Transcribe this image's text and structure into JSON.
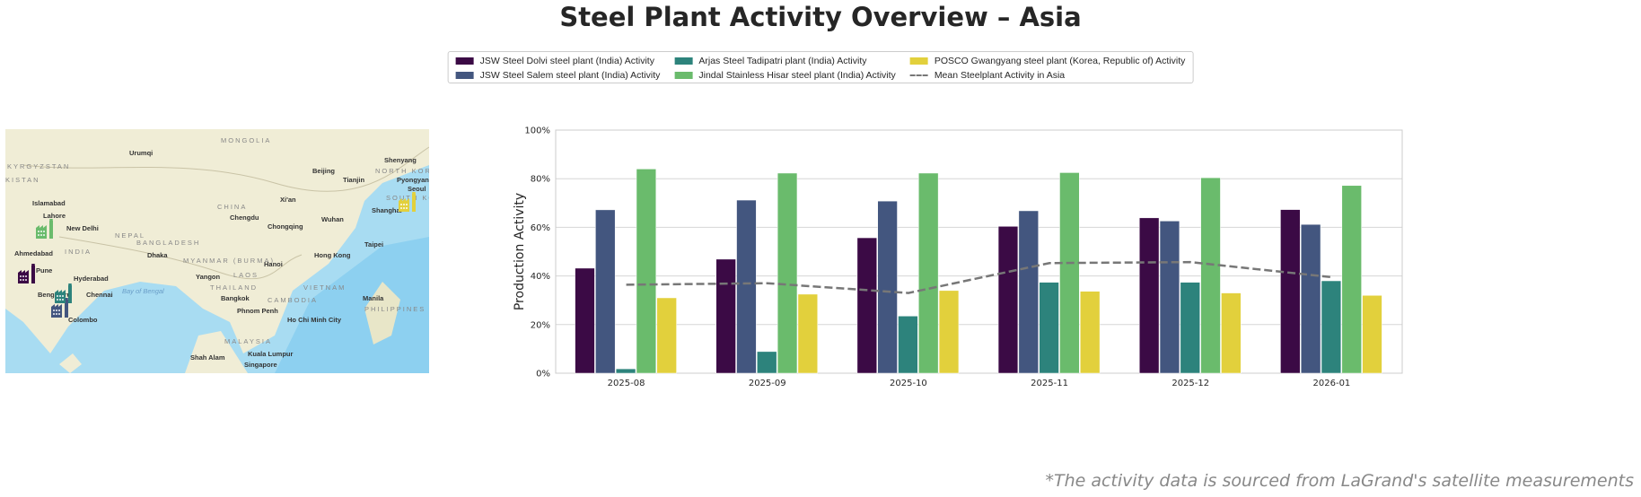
{
  "title": "Steel Plant Activity Overview – Asia",
  "footnote": "*The activity data is sourced from LaGrand's satellite measurements",
  "legend": [
    {
      "label": "JSW Steel Dolvi steel plant (India) Activity",
      "color": "#3b0a45"
    },
    {
      "label": "JSW Steel Salem steel plant (India) Activity",
      "color": "#43567f"
    },
    {
      "label": "Arjas Steel Tadipatri plant (India) Activity",
      "color": "#2d837c"
    },
    {
      "label": "Jindal Stainless Hisar steel plant (India) Activity",
      "color": "#6abb6c"
    },
    {
      "label": "POSCO Gwangyang steel plant (Korea, Republic of) Activity",
      "color": "#e2d03c"
    },
    {
      "label": "Mean Steelplant Activity in Asia",
      "color": "#777777",
      "style": "dashed"
    }
  ],
  "map": {
    "labels": [
      "MONGOLIA",
      "Urumqi",
      "KYRGYZSTAN",
      "KISTAN",
      "Islamabad",
      "Lahore",
      "New Delhi",
      "NEPAL",
      "INDIA",
      "Ahmedabad",
      "Pune",
      "Hyderabad",
      "Bengaluru",
      "Chennai",
      "Colombo",
      "BANGLADESH",
      "Dhaka",
      "MYANMAR (BURMA)",
      "Bay of Bengal",
      "Yangon",
      "THAILAND",
      "Bangkok",
      "LAOS",
      "Hanoi",
      "CAMBODIA",
      "Phnom Penh",
      "VIETNAM",
      "Ho Chi Minh City",
      "CHINA",
      "Chengdu",
      "Chongqing",
      "Xi'an",
      "Wuhan",
      "Beijing",
      "Tianjin",
      "Shenyang",
      "NORTH KOREA",
      "Pyongyang",
      "Seoul",
      "SOUTH KOREA",
      "Shanghai",
      "Hong Kong",
      "Taipei",
      "Manila",
      "PHILIPPINES",
      "MALAYSIA",
      "Kuala Lumpur",
      "Singapore",
      "Shah Alam"
    ]
  },
  "chart_data": {
    "type": "bar",
    "categories": [
      "2025-08",
      "2025-09",
      "2025-10",
      "2025-11",
      "2025-12",
      "2026-01"
    ],
    "ylabel": "Production Activity",
    "ylim": [
      0,
      100
    ],
    "yticks": [
      "0%",
      "20%",
      "40%",
      "60%",
      "80%",
      "100%"
    ],
    "grid": true,
    "legend_placement": "top-center",
    "series": [
      {
        "name": "JSW Steel Dolvi steel plant (India) Activity",
        "values": [
          43.2,
          46.9,
          55.7,
          60.4,
          63.9,
          67.3
        ]
      },
      {
        "name": "JSW Steel Salem steel plant (India) Activity",
        "values": [
          67.2,
          71.2,
          70.8,
          66.8,
          62.6,
          61.2
        ]
      },
      {
        "name": "Arjas Steel Tadipatri plant (India) Activity",
        "values": [
          1.8,
          8.9,
          23.5,
          37.4,
          37.4,
          38.0
        ]
      },
      {
        "name": "Jindal Stainless Hisar steel plant (India) Activity",
        "values": [
          84.0,
          82.3,
          82.3,
          82.5,
          80.4,
          77.2
        ]
      },
      {
        "name": "POSCO Gwangyang steel plant (Korea, Republic of) Activity",
        "values": [
          31.0,
          32.5,
          34.0,
          33.7,
          33.0,
          32.0
        ]
      }
    ],
    "mean_line": {
      "name": "Mean Steelplant Activity in Asia",
      "values": [
        36.4,
        37.0,
        33.0,
        45.3,
        45.7,
        39.5
      ]
    }
  }
}
